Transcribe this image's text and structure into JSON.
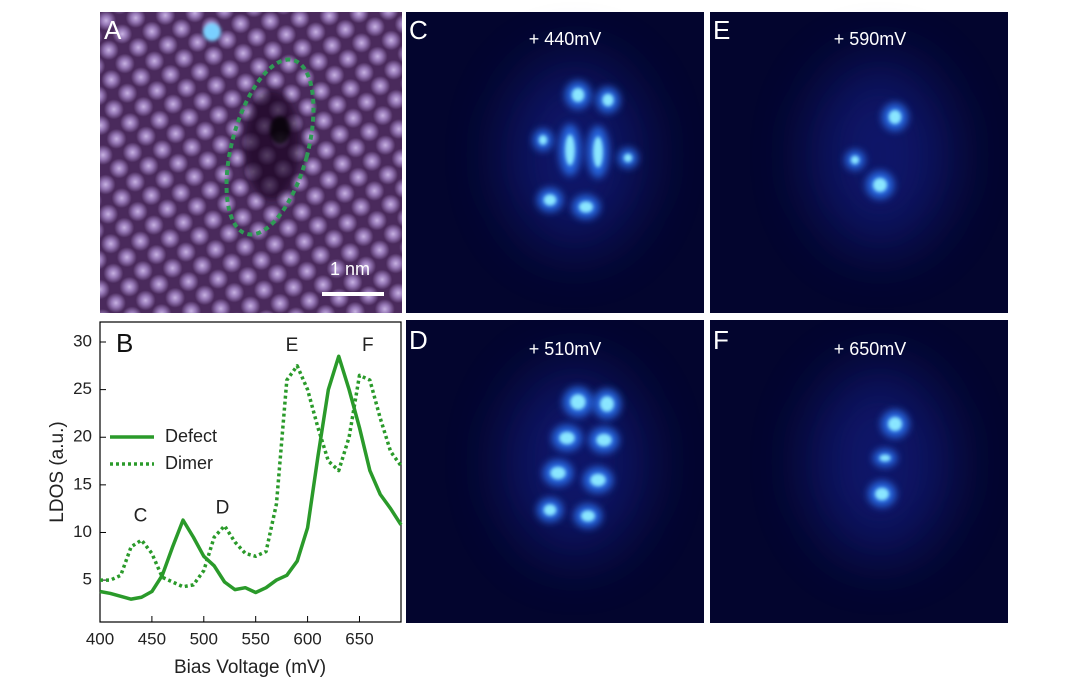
{
  "panels": [
    {
      "label": "A",
      "scale_bar": "1 nm"
    },
    {
      "label": "B"
    },
    {
      "label": "C",
      "bias": "+ 440mV"
    },
    {
      "label": "D",
      "bias": "+ 510mV"
    },
    {
      "label": "E",
      "bias": "+ 590mV"
    },
    {
      "label": "F",
      "bias": "+ 650mV"
    }
  ],
  "chart_data": {
    "type": "line",
    "x_label": "Bias Voltage (mV)",
    "y_label": "LDOS (a.u.)",
    "x": [
      400,
      410,
      420,
      430,
      440,
      450,
      460,
      470,
      480,
      490,
      500,
      510,
      520,
      530,
      540,
      550,
      560,
      570,
      580,
      590,
      600,
      610,
      620,
      630,
      640,
      650,
      660,
      670,
      680,
      690
    ],
    "series": [
      {
        "name": "Defect",
        "color": "#2a9a2a",
        "style": "solid",
        "values": [
          3.8,
          3.6,
          3.3,
          3.0,
          3.2,
          3.8,
          5.5,
          8.5,
          11.3,
          9.5,
          7.5,
          6.5,
          4.8,
          4.0,
          4.2,
          3.7,
          4.2,
          5.0,
          5.5,
          7.0,
          10.5,
          18,
          25,
          28.5,
          25,
          21,
          16.5,
          14,
          12.5,
          10.8
        ]
      },
      {
        "name": "Dimer",
        "color": "#2a9a2a",
        "style": "dotted",
        "values": [
          5.0,
          5.0,
          5.5,
          8.5,
          9.2,
          7.8,
          5.3,
          4.8,
          4.3,
          4.5,
          6.0,
          9.5,
          10.7,
          9.0,
          7.8,
          7.5,
          8.0,
          13,
          26,
          27.5,
          25,
          21,
          17.5,
          16.5,
          20,
          26.5,
          26,
          22,
          18.5,
          17
        ]
      }
    ],
    "annotations": [
      {
        "text": "C",
        "x": 439,
        "y": 11.7
      },
      {
        "text": "D",
        "x": 518,
        "y": 12.5
      },
      {
        "text": "E",
        "x": 585,
        "y": 29.6
      },
      {
        "text": "F",
        "x": 658,
        "y": 29.6
      }
    ],
    "xlim": [
      400,
      690
    ],
    "ylim": [
      0.6,
      32.1
    ],
    "xticks": [
      400,
      450,
      500,
      550,
      600,
      650
    ],
    "yticks": [
      5,
      10,
      15,
      20,
      25,
      30
    ],
    "legend": "center left"
  }
}
